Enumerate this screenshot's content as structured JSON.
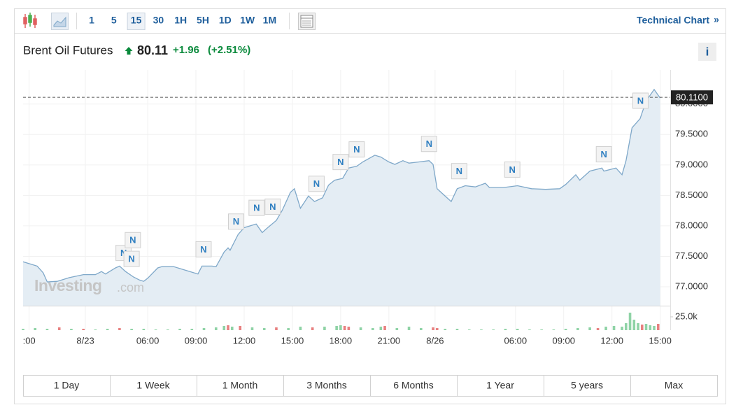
{
  "toolbar": {
    "intervals": [
      "1",
      "5",
      "15",
      "30",
      "1H",
      "5H",
      "1D",
      "1W",
      "1M"
    ],
    "selected_interval": 2,
    "link": "Technical Chart",
    "link_arrow": "»"
  },
  "header": {
    "name": "Brent Oil Futures",
    "price": "80.11",
    "change": "+1.96",
    "change_pct": "(+2.51%)",
    "info": "i"
  },
  "watermark": {
    "brand": "Investing",
    "suffix": ".com"
  },
  "chart_data": [
    {
      "type": "line",
      "x": [
        0,
        2,
        3.5,
        5,
        6,
        8.5,
        11.5,
        15,
        18,
        19.5,
        20.5,
        23,
        24,
        25.5,
        27.5,
        29,
        30,
        31,
        33.5,
        34.5,
        37.5,
        40,
        43.5,
        44.5,
        47,
        48,
        50,
        51,
        51.5,
        53.5,
        55,
        58,
        59.5,
        61,
        63,
        64.5,
        66.5,
        67.5,
        69,
        71,
        72.5,
        74.5,
        76,
        77.5,
        79.5,
        81,
        83,
        84.5,
        87.5,
        89,
        91,
        92.5,
        94.5,
        96,
        98.5,
        101,
        102,
        103,
        105.5,
        106.5,
        108,
        110,
        112.5,
        115,
        116,
        119.5,
        123,
        126.5,
        130,
        133.5,
        135,
        137.5,
        138.5,
        141,
        144,
        144.5,
        147.5,
        149,
        150,
        151.5,
        153.5,
        155,
        157,
        158.5
      ],
      "values": [
        77.41,
        77.37,
        77.34,
        77.23,
        77.08,
        77.09,
        77.15,
        77.2,
        77.2,
        77.25,
        77.21,
        77.31,
        77.34,
        77.25,
        77.16,
        77.11,
        77.09,
        77.14,
        77.31,
        77.33,
        77.33,
        77.28,
        77.21,
        77.34,
        77.34,
        77.33,
        77.57,
        77.64,
        77.6,
        77.86,
        77.97,
        78.03,
        77.89,
        77.98,
        78.09,
        78.26,
        78.55,
        78.61,
        78.29,
        78.49,
        78.4,
        78.46,
        78.67,
        78.75,
        78.78,
        78.95,
        78.98,
        79.05,
        79.16,
        79.13,
        79.05,
        79.01,
        79.07,
        79.03,
        79.05,
        79.07,
        79.01,
        78.61,
        78.46,
        78.4,
        78.61,
        78.66,
        78.64,
        78.7,
        78.63,
        78.63,
        78.66,
        78.61,
        78.6,
        78.61,
        78.68,
        78.84,
        78.75,
        78.9,
        78.95,
        78.9,
        78.95,
        78.84,
        79.07,
        79.61,
        79.76,
        80.05,
        80.24,
        80.1
      ],
      "color": "#7fa8c9",
      "fill": "#e4edf4",
      "grid": true,
      "xlim": [
        0,
        161
      ],
      "ylim": [
        76.69,
        80.56
      ],
      "yticks": [
        {
          "value": 77,
          "label": "77.0000"
        },
        {
          "value": 77.5,
          "label": "77.5000"
        },
        {
          "value": 78,
          "label": "78.0000"
        },
        {
          "value": 78.5,
          "label": "78.5000"
        },
        {
          "value": 79,
          "label": "79.0000"
        },
        {
          "value": 79.5,
          "label": "79.5000"
        },
        {
          "value": 80,
          "label": "80.0000"
        }
      ],
      "xticks": [
        {
          "value": 1.5,
          "label": ":00"
        },
        {
          "value": 15.5,
          "label": "8/23"
        },
        {
          "value": 31,
          "label": "06:00"
        },
        {
          "value": 43,
          "label": "09:00"
        },
        {
          "value": 55,
          "label": "12:00"
        },
        {
          "value": 67,
          "label": "15:00"
        },
        {
          "value": 79,
          "label": "18:00"
        },
        {
          "value": 91,
          "label": "21:00"
        },
        {
          "value": 102.5,
          "label": "8/26"
        },
        {
          "value": 122.5,
          "label": "06:00"
        },
        {
          "value": 134.5,
          "label": "09:00"
        },
        {
          "value": 146.5,
          "label": "12:00"
        },
        {
          "value": 158.5,
          "label": "15:00"
        }
      ],
      "last_price": {
        "value": 80.11,
        "label": "80.1100"
      },
      "news_markers": {
        "label": "N",
        "x": [
          25,
          27,
          27.3,
          44.9,
          53,
          58.1,
          62.1,
          73,
          79,
          83,
          101,
          108.5,
          121.7,
          144.5,
          153.6
        ]
      }
    },
    {
      "type": "bar",
      "x": [
        0,
        3,
        6,
        9,
        12,
        15,
        18,
        21,
        24,
        27,
        30,
        33,
        36,
        39,
        42,
        45,
        48,
        50,
        51,
        52,
        54,
        57,
        60,
        63,
        66,
        69,
        72,
        75,
        78,
        79,
        80,
        81,
        84,
        87,
        89,
        90,
        93,
        96,
        99,
        102,
        103,
        105,
        108,
        111,
        114,
        117,
        120,
        123,
        126,
        129,
        132,
        135,
        138,
        141,
        143,
        145,
        147,
        149,
        150,
        151,
        152,
        153,
        154,
        155,
        156,
        157,
        158
      ],
      "values": [
        2600,
        3900,
        2600,
        5200,
        2600,
        2600,
        1300,
        2600,
        3900,
        2600,
        2600,
        1300,
        1300,
        2600,
        2600,
        3900,
        5200,
        7900,
        9200,
        6600,
        7900,
        5200,
        3900,
        5200,
        3900,
        6600,
        5200,
        6600,
        7900,
        9200,
        7900,
        6600,
        5200,
        3900,
        6600,
        7900,
        3900,
        6600,
        3900,
        5200,
        3900,
        2600,
        2600,
        1300,
        1300,
        1300,
        2600,
        2600,
        1300,
        1300,
        1300,
        2600,
        3900,
        5200,
        3900,
        6600,
        7900,
        6600,
        13200,
        32900,
        19700,
        13200,
        10500,
        11800,
        9200,
        7900,
        11800
      ],
      "colors": [
        "#8fd3a6",
        "#8fd3a6",
        "#8fd3a6",
        "#e88080",
        "#8fd3a6",
        "#e88080",
        "#8fd3a6",
        "#8fd3a6",
        "#e88080",
        "#8fd3a6",
        "#8fd3a6",
        "#8fd3a6",
        "#8fd3a6",
        "#8fd3a6",
        "#8fd3a6",
        "#8fd3a6",
        "#8fd3a6",
        "#8fd3a6",
        "#e88080",
        "#8fd3a6",
        "#e88080",
        "#8fd3a6",
        "#8fd3a6",
        "#e88080",
        "#8fd3a6",
        "#8fd3a6",
        "#e88080",
        "#8fd3a6",
        "#8fd3a6",
        "#8fd3a6",
        "#e88080",
        "#e88080",
        "#8fd3a6",
        "#8fd3a6",
        "#8fd3a6",
        "#e88080",
        "#8fd3a6",
        "#8fd3a6",
        "#8fd3a6",
        "#e88080",
        "#e88080",
        "#8fd3a6",
        "#8fd3a6",
        "#8fd3a6",
        "#8fd3a6",
        "#8fd3a6",
        "#8fd3a6",
        "#8fd3a6",
        "#8fd3a6",
        "#8fd3a6",
        "#8fd3a6",
        "#8fd3a6",
        "#8fd3a6",
        "#8fd3a6",
        "#e88080",
        "#8fd3a6",
        "#8fd3a6",
        "#8fd3a6",
        "#8fd3a6",
        "#8fd3a6",
        "#8fd3a6",
        "#8fd3a6",
        "#e88080",
        "#8fd3a6",
        "#8fd3a6",
        "#8fd3a6",
        "#e88080"
      ],
      "xlim": [
        0,
        161
      ],
      "ylim": [
        0,
        46000
      ],
      "yticks": [
        {
          "value": 25000,
          "label": "25.0k"
        }
      ]
    }
  ],
  "ranges": [
    "1 Day",
    "1 Week",
    "1 Month",
    "3 Months",
    "6 Months",
    "1 Year",
    "5 years",
    "Max"
  ]
}
